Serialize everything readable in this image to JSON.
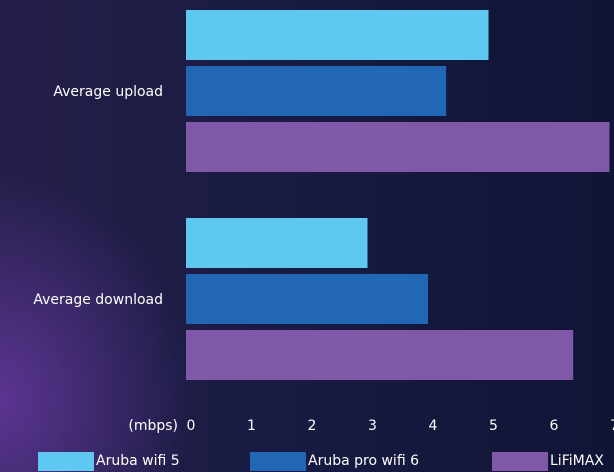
{
  "chart_data": {
    "type": "bar",
    "orientation": "horizontal",
    "categories": [
      "Average upload",
      "Average download"
    ],
    "series": [
      {
        "name": "Aruba wifi 5",
        "color": "#5fc8f2",
        "values": [
          5.0,
          3.0
        ]
      },
      {
        "name": "Aruba pro wifi 6",
        "color": "#2167b4",
        "values": [
          4.3,
          4.0
        ]
      },
      {
        "name": "LiFiMAX",
        "color": "#7f58a8",
        "values": [
          7.0,
          6.4
        ]
      }
    ],
    "xlabel": "(mbps)",
    "xlim": [
      0,
      7
    ],
    "xticks": [
      "0",
      "1",
      "2",
      "3",
      "4",
      "5",
      "6",
      "7"
    ],
    "grid": false,
    "legend_position": "bottom"
  }
}
